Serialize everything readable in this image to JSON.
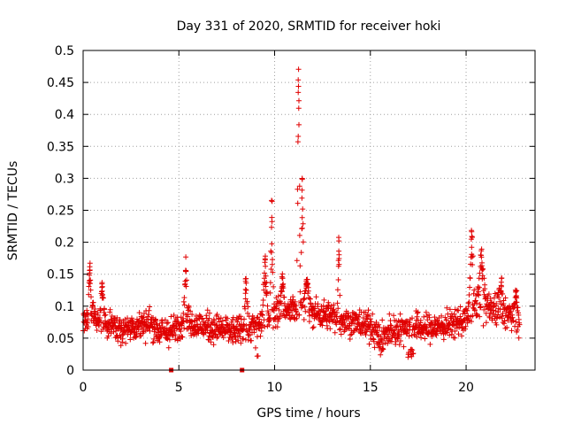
{
  "chart_data": {
    "type": "scatter",
    "title": "Day 331 of 2020, SRMTID for receiver hoki",
    "xlabel": "GPS time / hours",
    "ylabel": "SRMTID / TECUs",
    "xlim": [
      0,
      23.6
    ],
    "ylim": [
      0,
      0.5
    ],
    "x_ticks": [
      0,
      5,
      10,
      15,
      20
    ],
    "x_tick_labels": [
      "0",
      "5",
      "10",
      "15",
      "20"
    ],
    "y_ticks": [
      0,
      0.05,
      0.1,
      0.15,
      0.2,
      0.25,
      0.3,
      0.35,
      0.4,
      0.45,
      0.5
    ],
    "y_tick_labels": [
      "0",
      "0.05",
      "0.1",
      "0.15",
      "0.2",
      "0.25",
      "0.3",
      "0.35",
      "0.4",
      "0.45",
      "0.5"
    ],
    "grid": true,
    "legend": "none",
    "marker": "plus",
    "color": "#e00000",
    "series": [
      {
        "name": "SRMTID",
        "trend": [
          [
            0,
            0.07
          ],
          [
            0.3,
            0.085
          ],
          [
            0.5,
            0.09
          ],
          [
            1,
            0.07
          ],
          [
            2,
            0.065
          ],
          [
            3,
            0.07
          ],
          [
            3.5,
            0.075
          ],
          [
            4,
            0.06
          ],
          [
            4.5,
            0.06
          ],
          [
            5,
            0.065
          ],
          [
            5.3,
            0.08
          ],
          [
            6,
            0.07
          ],
          [
            7,
            0.065
          ],
          [
            8,
            0.06
          ],
          [
            8.5,
            0.065
          ],
          [
            9,
            0.07
          ],
          [
            9.5,
            0.08
          ],
          [
            10,
            0.09
          ],
          [
            10.5,
            0.09
          ],
          [
            11,
            0.095
          ],
          [
            11.5,
            0.1
          ],
          [
            12,
            0.09
          ],
          [
            13,
            0.085
          ],
          [
            14,
            0.075
          ],
          [
            15,
            0.07
          ],
          [
            15.5,
            0.05
          ],
          [
            16,
            0.06
          ],
          [
            17,
            0.07
          ],
          [
            18,
            0.065
          ],
          [
            19,
            0.07
          ],
          [
            20,
            0.08
          ],
          [
            20.5,
            0.1
          ],
          [
            21,
            0.1
          ],
          [
            22,
            0.09
          ],
          [
            22.5,
            0.085
          ],
          [
            22.8,
            0.07
          ]
        ],
        "noise": 0.02,
        "points_per_hour": 75,
        "peaks": [
          {
            "x": 0.35,
            "y": 0.17,
            "width": 0.15
          },
          {
            "x": 1.0,
            "y": 0.14,
            "width": 0.2
          },
          {
            "x": 5.35,
            "y": 0.185,
            "width": 0.15
          },
          {
            "x": 8.5,
            "y": 0.15,
            "width": 0.15
          },
          {
            "x": 9.5,
            "y": 0.18,
            "width": 0.2
          },
          {
            "x": 9.85,
            "y": 0.27,
            "width": 0.12
          },
          {
            "x": 10.4,
            "y": 0.15,
            "width": 0.2
          },
          {
            "x": 11.25,
            "y": 0.49,
            "width": 0.12
          },
          {
            "x": 11.45,
            "y": 0.3,
            "width": 0.15
          },
          {
            "x": 11.7,
            "y": 0.15,
            "width": 0.25
          },
          {
            "x": 13.35,
            "y": 0.21,
            "width": 0.1
          },
          {
            "x": 20.3,
            "y": 0.22,
            "width": 0.2
          },
          {
            "x": 20.8,
            "y": 0.19,
            "width": 0.3
          },
          {
            "x": 21.8,
            "y": 0.15,
            "width": 0.3
          },
          {
            "x": 22.6,
            "y": 0.13,
            "width": 0.2
          }
        ],
        "dips": [
          {
            "x": 9.1,
            "y": 0.02
          },
          {
            "x": 15.6,
            "y": 0.02
          },
          {
            "x": 17.1,
            "y": 0.02
          }
        ]
      },
      {
        "name": "zero-markers",
        "marker": "square",
        "x": [
          4.6,
          8.3
        ],
        "y": [
          0,
          0
        ]
      }
    ]
  }
}
